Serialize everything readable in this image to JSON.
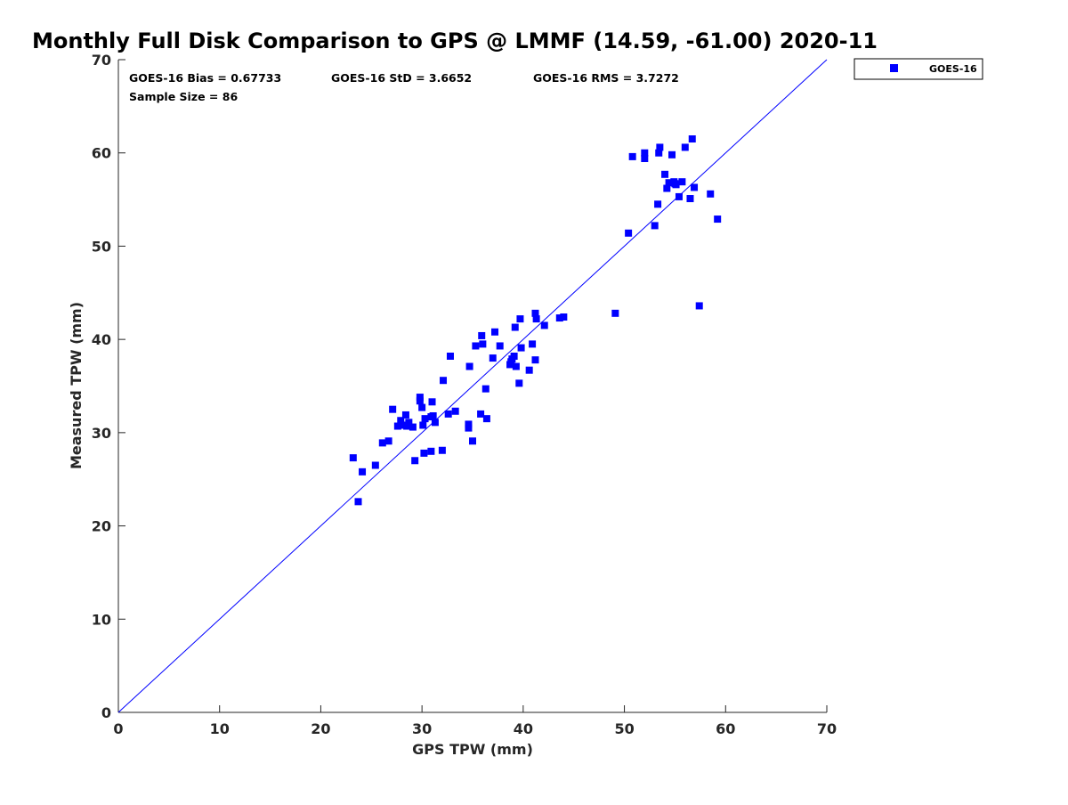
{
  "chart_data": {
    "type": "scatter",
    "title": "Monthly Full Disk Comparison to GPS @ LMMF (14.59, -61.00) 2020-11",
    "xlabel": "GPS TPW (mm)",
    "ylabel": "Measured TPW (mm)",
    "xlim": [
      0,
      70
    ],
    "ylim": [
      0,
      70
    ],
    "xticks": [
      "0",
      "10",
      "20",
      "30",
      "40",
      "50",
      "60",
      "70"
    ],
    "yticks": [
      "0",
      "10",
      "20",
      "30",
      "40",
      "50",
      "60",
      "70"
    ],
    "grid": false,
    "legend_position": "top-right, outside plot area",
    "reference_line": {
      "label": "1:1 line",
      "color": "#0000ff"
    },
    "stats": {
      "bias": "GOES-16 Bias = 0.67733",
      "std": "GOES-16 StD = 3.6652",
      "rms": "GOES-16 RMS = 3.7272",
      "sample_size": "Sample Size = 86"
    },
    "series": [
      {
        "name": "GOES-16",
        "color": "#0000ff",
        "marker": "square",
        "points": [
          [
            23.2,
            27.3
          ],
          [
            23.7,
            22.6
          ],
          [
            24.1,
            25.8
          ],
          [
            25.4,
            26.5
          ],
          [
            26.1,
            28.9
          ],
          [
            26.7,
            29.1
          ],
          [
            27.1,
            32.5
          ],
          [
            27.6,
            30.7
          ],
          [
            27.9,
            31.3
          ],
          [
            28.2,
            30.8
          ],
          [
            28.4,
            31.9
          ],
          [
            28.5,
            30.7
          ],
          [
            28.7,
            31.1
          ],
          [
            29.1,
            30.6
          ],
          [
            29.3,
            27.0
          ],
          [
            29.8,
            33.8
          ],
          [
            29.8,
            33.4
          ],
          [
            30.0,
            32.7
          ],
          [
            30.1,
            30.8
          ],
          [
            30.2,
            27.8
          ],
          [
            30.3,
            31.5
          ],
          [
            30.9,
            28.0
          ],
          [
            30.9,
            31.7
          ],
          [
            31.0,
            33.3
          ],
          [
            31.1,
            31.8
          ],
          [
            31.3,
            31.1
          ],
          [
            32.0,
            28.1
          ],
          [
            32.1,
            35.6
          ],
          [
            32.6,
            32.0
          ],
          [
            32.8,
            38.2
          ],
          [
            33.3,
            32.3
          ],
          [
            34.6,
            30.9
          ],
          [
            34.6,
            30.5
          ],
          [
            34.7,
            37.1
          ],
          [
            35.0,
            29.1
          ],
          [
            35.3,
            39.3
          ],
          [
            35.8,
            32.0
          ],
          [
            35.9,
            40.4
          ],
          [
            36.0,
            39.5
          ],
          [
            36.3,
            34.7
          ],
          [
            36.4,
            31.5
          ],
          [
            37.0,
            38.0
          ],
          [
            37.2,
            40.8
          ],
          [
            37.7,
            39.3
          ],
          [
            38.7,
            37.3
          ],
          [
            38.9,
            37.9
          ],
          [
            39.1,
            38.2
          ],
          [
            39.2,
            41.3
          ],
          [
            39.3,
            37.1
          ],
          [
            39.6,
            35.3
          ],
          [
            39.7,
            42.2
          ],
          [
            39.8,
            39.1
          ],
          [
            40.6,
            36.7
          ],
          [
            40.9,
            39.5
          ],
          [
            41.2,
            37.8
          ],
          [
            41.2,
            42.8
          ],
          [
            41.3,
            42.2
          ],
          [
            42.1,
            41.5
          ],
          [
            43.6,
            42.3
          ],
          [
            44.0,
            42.4
          ],
          [
            49.1,
            42.8
          ],
          [
            50.4,
            51.4
          ],
          [
            50.8,
            59.6
          ],
          [
            52.0,
            60.0
          ],
          [
            52.0,
            59.4
          ],
          [
            53.0,
            52.2
          ],
          [
            53.3,
            54.5
          ],
          [
            53.4,
            60.0
          ],
          [
            53.5,
            60.6
          ],
          [
            54.0,
            57.7
          ],
          [
            54.2,
            56.2
          ],
          [
            54.4,
            56.8
          ],
          [
            54.7,
            59.8
          ],
          [
            54.9,
            56.9
          ],
          [
            55.1,
            56.6
          ],
          [
            55.4,
            55.3
          ],
          [
            55.7,
            56.9
          ],
          [
            56.0,
            60.6
          ],
          [
            56.5,
            55.1
          ],
          [
            56.7,
            61.5
          ],
          [
            56.9,
            56.3
          ],
          [
            57.4,
            43.6
          ],
          [
            58.5,
            55.6
          ],
          [
            59.2,
            52.9
          ],
          [
            55.0,
            56.7
          ],
          [
            38.8,
            37.6
          ]
        ]
      }
    ]
  }
}
